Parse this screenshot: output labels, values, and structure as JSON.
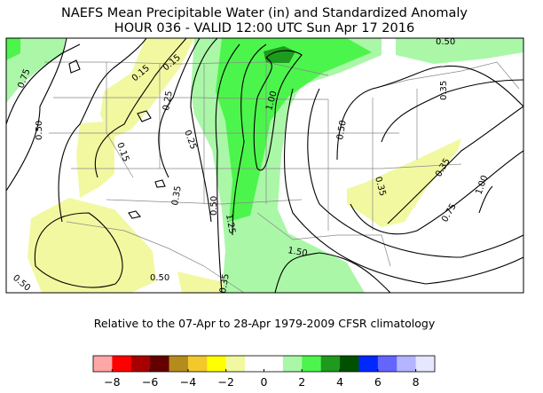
{
  "title": {
    "line1": "NAEFS Mean Precipitable Water (in) and Standardized Anomaly",
    "line2": "HOUR 036 - VALID 12:00 UTC Sun Apr 17 2016"
  },
  "subtitle": "Relative to the 07-Apr to 28-Apr 1979-2009 CFSR climatology",
  "colors": {
    "light_green": "#aaf7a8",
    "green": "#4cf54c",
    "dark_green": "#1e9a1e",
    "light_yellow": "#f2f8a0",
    "contour": "#000000",
    "borders": "#888888"
  },
  "contour_labels": [
    "0.50",
    "0.75",
    "0.15",
    "0.15",
    "0.25",
    "0.50",
    "0.15",
    "0.25",
    "1.00",
    "0.35",
    "0.50",
    "0.35",
    "0.50",
    "1.25",
    "0.35",
    "0.35",
    "1.00",
    "0.75",
    "1.50",
    "0.50",
    "0.50",
    "0.35"
  ],
  "colorbar": {
    "colors": [
      "#ffa6a6",
      "#ff0000",
      "#a80000",
      "#640000",
      "#b48c1e",
      "#f2c82d",
      "#ffff00",
      "#f2f8a0",
      "#ffffff",
      "#ffffff",
      "#aaf7a8",
      "#4cf54c",
      "#1e9a1e",
      "#005000",
      "#0028ff",
      "#6464ff",
      "#b4b4ff",
      "#e6e6ff"
    ],
    "tick_labels": [
      "−8",
      "−6",
      "−4",
      "−2",
      "0",
      "2",
      "4",
      "6",
      "8"
    ],
    "range": [
      -9,
      9
    ]
  }
}
